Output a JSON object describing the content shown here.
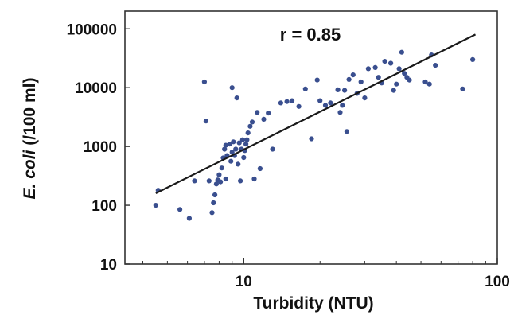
{
  "chart_data": {
    "type": "scatter",
    "xlabel": "Turbidity (NTU)",
    "ylabel_italic": "E. coli",
    "ylabel_rest": " (/100 ml)",
    "annotation": "r = 0.85",
    "x_scale": "log",
    "y_scale": "log",
    "xlim": [
      3.4,
      100
    ],
    "ylim": [
      10,
      200000
    ],
    "x_ticks": [
      {
        "value": 10,
        "label": "10"
      },
      {
        "value": 100,
        "label": "100"
      }
    ],
    "y_ticks": [
      {
        "value": 10,
        "label": "10"
      },
      {
        "value": 100,
        "label": "100"
      },
      {
        "value": 1000,
        "label": "1000"
      },
      {
        "value": 10000,
        "label": "10000"
      },
      {
        "value": 100000,
        "label": "100000"
      }
    ],
    "grid": false,
    "colors": {
      "points": "#3a4f8f",
      "fit_line": "#1a1a1a",
      "axes": "#333333"
    },
    "fit_line": {
      "x": [
        4.5,
        82
      ],
      "y": [
        160,
        80000
      ]
    },
    "points": [
      [
        4.5,
        100
      ],
      [
        4.6,
        180
      ],
      [
        5.6,
        85
      ],
      [
        6.1,
        60
      ],
      [
        6.4,
        260
      ],
      [
        7.0,
        12500
      ],
      [
        7.1,
        2700
      ],
      [
        7.3,
        260
      ],
      [
        7.5,
        75
      ],
      [
        7.6,
        110
      ],
      [
        7.7,
        150
      ],
      [
        7.8,
        230
      ],
      [
        7.9,
        270
      ],
      [
        8.0,
        330
      ],
      [
        8.1,
        250
      ],
      [
        8.2,
        430
      ],
      [
        8.3,
        640
      ],
      [
        8.4,
        900
      ],
      [
        8.5,
        1050
      ],
      [
        8.5,
        280
      ],
      [
        8.6,
        700
      ],
      [
        8.8,
        1100
      ],
      [
        8.9,
        560
      ],
      [
        9.0,
        800
      ],
      [
        9.1,
        1200
      ],
      [
        9.0,
        10000
      ],
      [
        9.4,
        6700
      ],
      [
        9.2,
        700
      ],
      [
        9.3,
        900
      ],
      [
        9.5,
        500
      ],
      [
        9.6,
        1150
      ],
      [
        9.7,
        260
      ],
      [
        9.8,
        900
      ],
      [
        9.9,
        1300
      ],
      [
        10.0,
        650
      ],
      [
        10.1,
        850
      ],
      [
        10.2,
        1100
      ],
      [
        10.3,
        1300
      ],
      [
        10.4,
        1700
      ],
      [
        10.6,
        2200
      ],
      [
        10.8,
        2600
      ],
      [
        11.0,
        280
      ],
      [
        11.3,
        3800
      ],
      [
        11.6,
        420
      ],
      [
        12.0,
        2900
      ],
      [
        12.5,
        3700
      ],
      [
        13.0,
        900
      ],
      [
        14.0,
        5500
      ],
      [
        14.8,
        5800
      ],
      [
        15.5,
        6000
      ],
      [
        16.5,
        4800
      ],
      [
        17.5,
        9500
      ],
      [
        18.5,
        1350
      ],
      [
        19.5,
        13500
      ],
      [
        20.0,
        6000
      ],
      [
        21.0,
        5000
      ],
      [
        22.0,
        5500
      ],
      [
        23.5,
        9200
      ],
      [
        24.0,
        3800
      ],
      [
        24.5,
        5000
      ],
      [
        25.0,
        9000
      ],
      [
        25.5,
        1800
      ],
      [
        26.0,
        13800
      ],
      [
        27.0,
        16500
      ],
      [
        28.0,
        8000
      ],
      [
        29.0,
        12500
      ],
      [
        30.0,
        6700
      ],
      [
        31.0,
        21000
      ],
      [
        33.0,
        22000
      ],
      [
        34.0,
        15000
      ],
      [
        35.0,
        12000
      ],
      [
        36.0,
        28000
      ],
      [
        38.0,
        26000
      ],
      [
        39.0,
        9000
      ],
      [
        40.0,
        11500
      ],
      [
        41.0,
        21000
      ],
      [
        42.0,
        40000
      ],
      [
        43.0,
        17500
      ],
      [
        44.0,
        15000
      ],
      [
        45.0,
        13500
      ],
      [
        52.0,
        12500
      ],
      [
        54.0,
        11500
      ],
      [
        55.0,
        36000
      ],
      [
        57.0,
        24000
      ],
      [
        73.0,
        9500
      ],
      [
        80.0,
        30000
      ]
    ]
  }
}
